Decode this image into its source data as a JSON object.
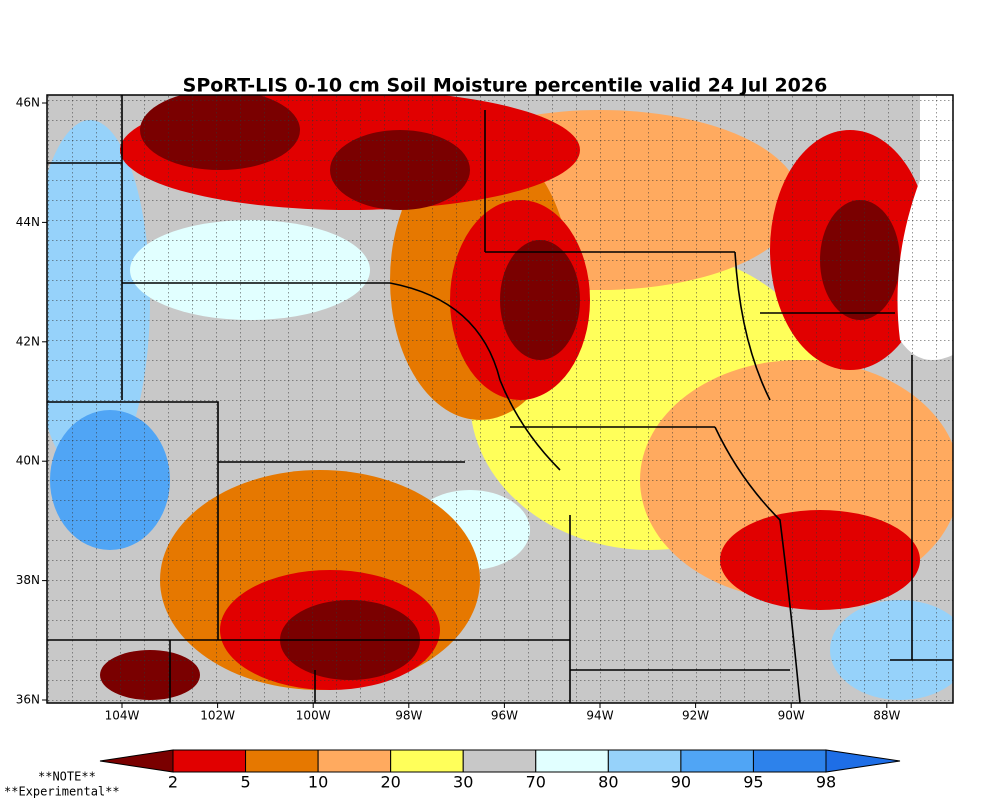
{
  "title": "SPoRT-LIS 0-10 cm Soil Moisture percentile valid 24 Jul 2026",
  "lat_labels": [
    "46N",
    "44N",
    "42N",
    "40N",
    "38N",
    "36N"
  ],
  "lon_labels": [
    "104W",
    "102W",
    "100W",
    "98W",
    "96W",
    "94W",
    "92W",
    "90W",
    "88W"
  ],
  "colorbar": {
    "ticks": [
      2,
      5,
      10,
      20,
      30,
      70,
      80,
      90,
      95,
      98
    ],
    "colors": [
      "#7a0000",
      "#e10000",
      "#e67800",
      "#ffaa5f",
      "#ffff5a",
      "#c8c8c8",
      "#e1ffff",
      "#96d2fa",
      "#50a5f5",
      "#2d82eb",
      "#1e6ee6"
    ]
  },
  "notes": [
    "**NOTE**",
    "**Experimental**"
  ]
}
